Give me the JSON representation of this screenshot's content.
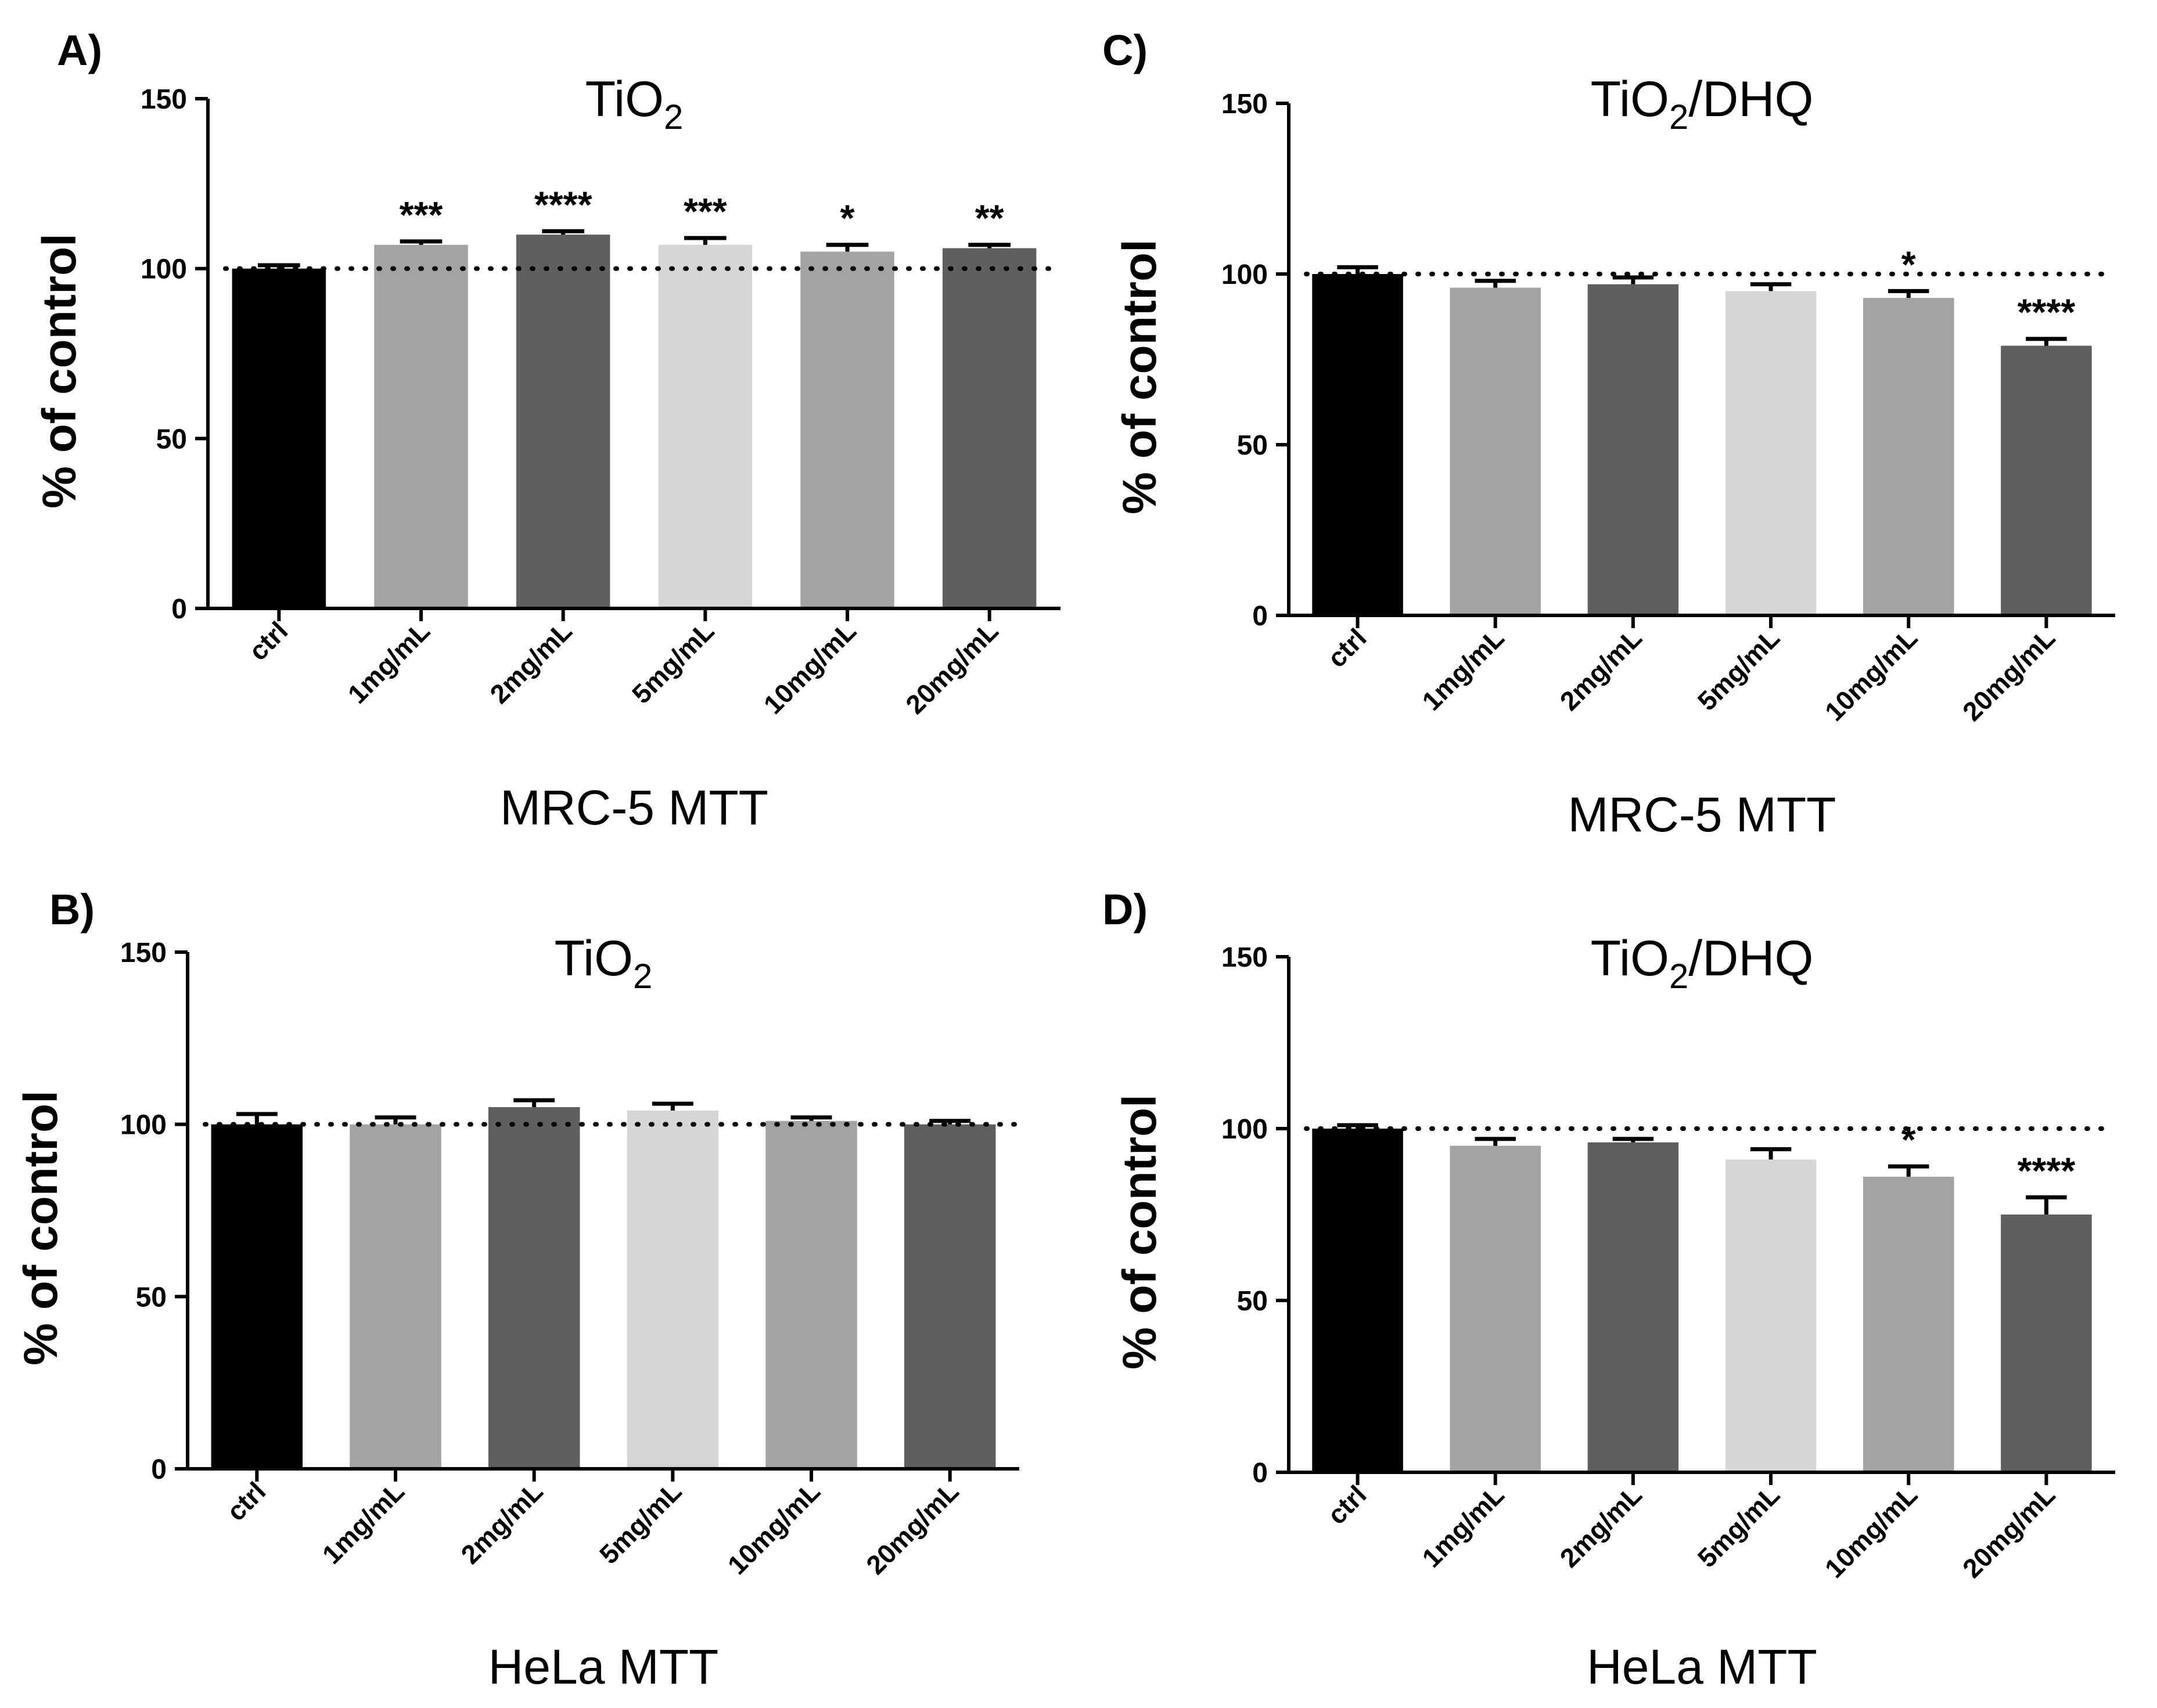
{
  "chart_data": [
    {
      "panel": "A)",
      "type": "bar",
      "title_main": "TiO",
      "title_sub": "2",
      "title_tail": "",
      "xlabel": "MRC-5 MTT",
      "ylabel": "% of control",
      "ylim": [
        0,
        150
      ],
      "yticks": [
        "0",
        "50",
        "100",
        "150"
      ],
      "reference_line": 100,
      "categories": [
        "ctrl",
        "1mg/mL",
        "2mg/mL",
        "5mg/mL",
        "10mg/mL",
        "20mg/mL"
      ],
      "values": [
        100,
        107,
        110,
        107,
        105,
        106
      ],
      "errors": [
        1,
        1,
        1,
        2,
        2,
        1
      ],
      "colors": [
        "#000000",
        "#a3a3a6",
        "#5f5f5f",
        "#d6d6d6",
        "#a3a3a6",
        "#5f5f5f"
      ],
      "significance": [
        "",
        "***",
        "****",
        "***",
        "*",
        "**"
      ]
    },
    {
      "panel": "B)",
      "type": "bar",
      "title_main": "TiO",
      "title_sub": "2",
      "title_tail": "",
      "xlabel": "HeLa MTT",
      "ylabel": "% of control",
      "ylim": [
        0,
        150
      ],
      "yticks": [
        "0",
        "50",
        "100",
        "150"
      ],
      "reference_line": 100,
      "categories": [
        "ctrl",
        "1mg/mL",
        "2mg/mL",
        "5mg/mL",
        "10mg/mL",
        "20mg/mL"
      ],
      "values": [
        100,
        100,
        105,
        104,
        101,
        100
      ],
      "errors": [
        3,
        2,
        2,
        2,
        1,
        1
      ],
      "colors": [
        "#000000",
        "#a3a3a6",
        "#5f5f5f",
        "#d6d6d6",
        "#a3a3a6",
        "#5f5f5f"
      ],
      "significance": [
        "",
        "",
        "",
        "",
        "",
        ""
      ]
    },
    {
      "panel": "C)",
      "type": "bar",
      "title_main": "TiO",
      "title_sub": "2",
      "title_tail": "/DHQ",
      "xlabel": "MRC-5 MTT",
      "ylabel": "% of control",
      "ylim": [
        0,
        150
      ],
      "yticks": [
        "0",
        "50",
        "100",
        "150"
      ],
      "reference_line": 100,
      "categories": [
        "ctrl",
        "1mg/mL",
        "2mg/mL",
        "5mg/mL",
        "10mg/mL",
        "20mg/mL"
      ],
      "values": [
        100,
        96,
        97,
        95,
        93,
        79
      ],
      "errors": [
        2,
        2,
        2,
        2,
        2,
        2
      ],
      "colors": [
        "#000000",
        "#a3a3a6",
        "#5f5f5f",
        "#d6d6d6",
        "#a3a3a6",
        "#5f5f5f"
      ],
      "significance": [
        "",
        "",
        "",
        "",
        "*",
        "****"
      ]
    },
    {
      "panel": "D)",
      "type": "bar",
      "title_main": "TiO",
      "title_sub": "2",
      "title_tail": "/DHQ",
      "xlabel": "HeLa MTT",
      "ylabel": "% of control",
      "ylim": [
        0,
        150
      ],
      "yticks": [
        "0",
        "50",
        "100",
        "150"
      ],
      "reference_line": 100,
      "categories": [
        "ctrl",
        "1mg/mL",
        "2mg/mL",
        "5mg/mL",
        "10mg/mL",
        "20mg/mL"
      ],
      "values": [
        100,
        95,
        96,
        91,
        86,
        75
      ],
      "errors": [
        1,
        2,
        1,
        3,
        3,
        5
      ],
      "colors": [
        "#000000",
        "#a3a3a6",
        "#5f5f5f",
        "#d6d6d6",
        "#a3a3a6",
        "#5f5f5f"
      ],
      "significance": [
        "",
        "",
        "",
        "",
        "*",
        "****"
      ]
    }
  ]
}
